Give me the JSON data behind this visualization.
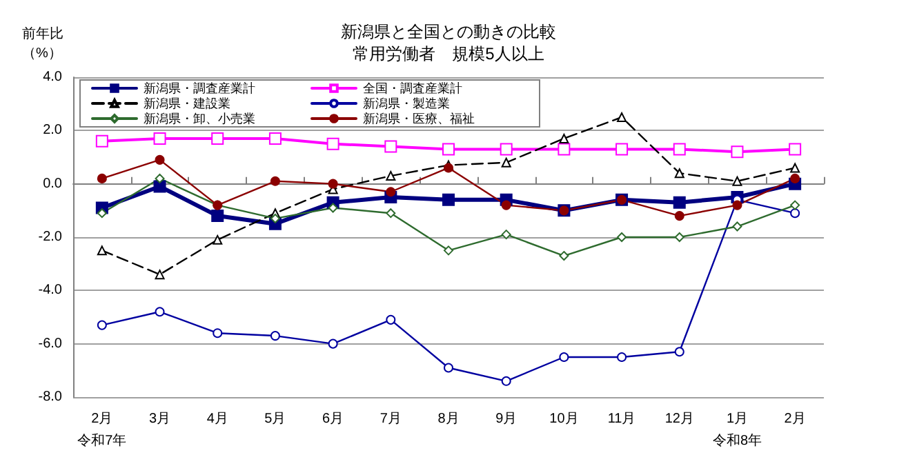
{
  "chart_data": {
    "type": "line",
    "title": "新潟県と全国との動きの比較",
    "subtitle": "常用労働者　規模5人以上",
    "ylabel": "前年比（%）",
    "categories": [
      "2月令和7年",
      "3月",
      "4月",
      "5月",
      "6月",
      "7月",
      "8月",
      "9月",
      "10月",
      "11月",
      "12月",
      "1月令和8年",
      "2月"
    ],
    "series": [
      {
        "name": "新潟県・調査産業計",
        "color": "#000080",
        "marker": "square",
        "values": [
          -0.9,
          -0.1,
          -1.2,
          -1.5,
          -0.7,
          -0.5,
          -0.6,
          -0.6,
          -1.0,
          -0.6,
          -0.7,
          -0.5,
          0.0
        ]
      },
      {
        "name": "全国・調査産業計",
        "color": "#ff00ff",
        "marker": "square",
        "values": [
          1.6,
          1.7,
          1.7,
          1.7,
          1.5,
          1.4,
          1.3,
          1.3,
          1.3,
          1.3,
          1.3,
          1.2,
          1.3
        ]
      },
      {
        "name": "新潟県・建設業",
        "color": "#000000",
        "marker": "triangle",
        "line_style": "dashed",
        "values": [
          -2.5,
          -3.4,
          -2.1,
          -1.1,
          -0.2,
          0.3,
          0.7,
          0.8,
          1.7,
          2.5,
          0.4,
          0.1,
          0.6
        ]
      },
      {
        "name": "新潟県・製造業",
        "color": "#0000a0",
        "marker": "circle",
        "values": [
          -5.3,
          -4.8,
          -5.6,
          -5.7,
          -6.0,
          -5.1,
          -6.9,
          -7.4,
          -6.5,
          -6.5,
          -6.3,
          -0.6,
          -1.1
        ]
      },
      {
        "name": "新潟県・卸、小売業",
        "color": "#2e6b2e",
        "marker": "diamond",
        "values": [
          -1.1,
          0.2,
          -0.8,
          -1.3,
          -0.9,
          -1.1,
          -2.5,
          -1.9,
          -2.7,
          -2.0,
          -2.0,
          -1.6,
          -0.8
        ]
      },
      {
        "name": "新潟県・医療、福祉",
        "color": "#8b0000",
        "marker": "circle",
        "values": [
          0.2,
          0.9,
          -0.8,
          0.1,
          0.0,
          -0.3,
          0.6,
          -0.8,
          -1.0,
          -0.6,
          -1.2,
          -0.8,
          0.2
        ]
      }
    ],
    "ylim": [
      -8,
      4
    ],
    "yticks": [
      {
        "value": -8,
        "label": "-8.0"
      },
      {
        "value": -6,
        "label": "-6.0"
      },
      {
        "value": -4,
        "label": "-4.0"
      },
      {
        "value": -2,
        "label": "-2.0"
      },
      {
        "value": 0,
        "label": "0.0"
      },
      {
        "value": 2,
        "label": "2.0"
      },
      {
        "value": 4,
        "label": "4.0"
      }
    ],
    "grid": "y",
    "legend": "top left",
    "line_style": "solid"
  }
}
